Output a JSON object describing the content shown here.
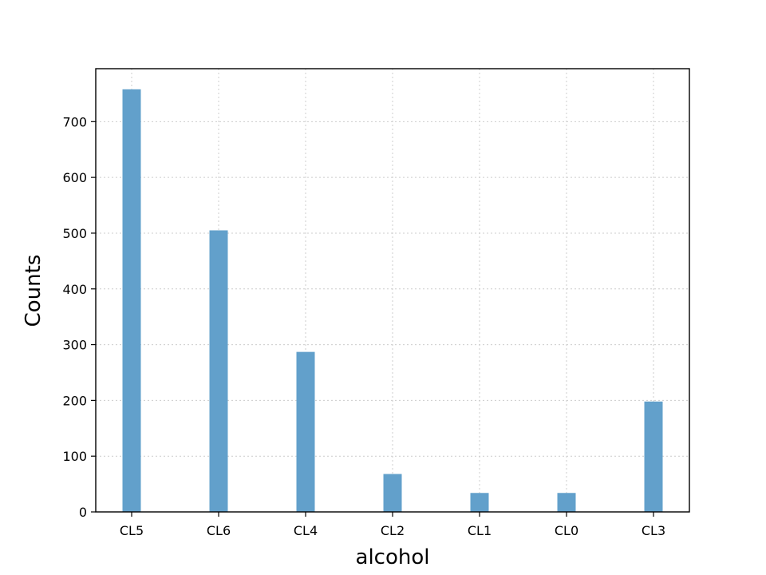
{
  "chart_data": {
    "type": "bar",
    "title": "",
    "xlabel": "alcohol",
    "ylabel": "Counts",
    "categories": [
      "CL5",
      "CL6",
      "CL4",
      "CL2",
      "CL1",
      "CL0",
      "CL3"
    ],
    "values": [
      758,
      505,
      287,
      68,
      34,
      34,
      198
    ],
    "ylim": [
      0,
      795
    ],
    "yticks": [
      0,
      100,
      200,
      300,
      400,
      500,
      600,
      700
    ],
    "grid": true,
    "bar_color": "#62a0cb",
    "grid_color": "#cccccc"
  }
}
